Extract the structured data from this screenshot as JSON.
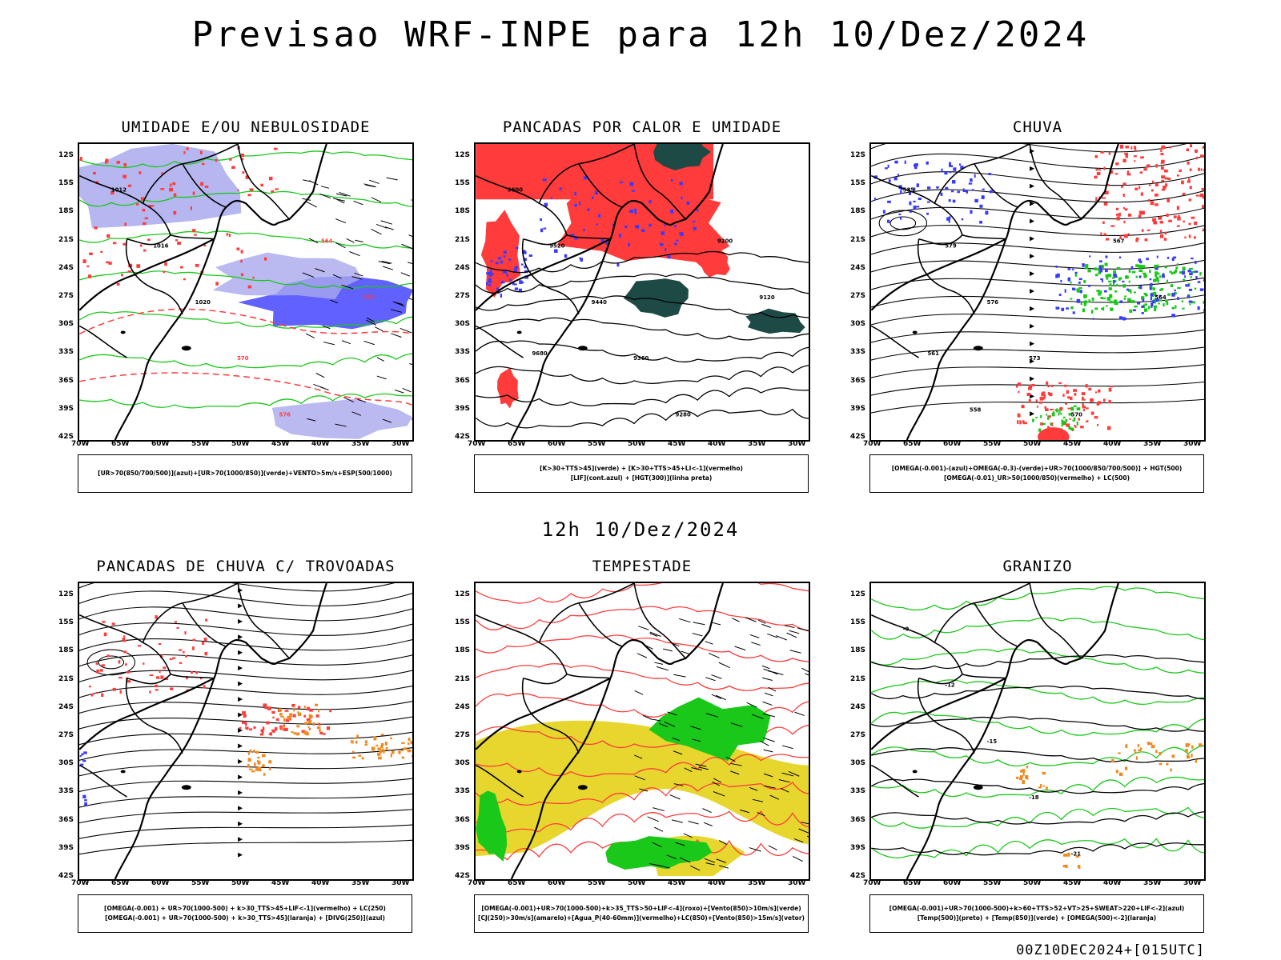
{
  "title": "Previsao WRF-INPE  para 12h 10/Dez/2024",
  "subtitle": "12h 10/Dez/2024",
  "footer": "00Z10DEC2024+[015UTC]",
  "lat_labels": [
    "12S",
    "15S",
    "18S",
    "21S",
    "24S",
    "27S",
    "30S",
    "33S",
    "36S",
    "39S",
    "42S"
  ],
  "lon_labels": [
    "70W",
    "65W",
    "60W",
    "55W",
    "50W",
    "45W",
    "40W",
    "35W",
    "30W"
  ],
  "colors": {
    "red": "#ff3b3b",
    "blue": "#3a3aff",
    "lavender": "#a9a9ee",
    "green": "#19c819",
    "darkteal": "#1e4a46",
    "yellow": "#e6d62e",
    "orange": "#f08a1e"
  },
  "panels": [
    {
      "title": "UMIDADE E/OU NEBULOSIDADE",
      "legend": [
        "[UR>70(850/700/500)](azul)+[UR>70(1000/850)](verde)+VENTO>5m/s+ESP(500/1000)"
      ],
      "contour_labels": [
        "1012",
        "1016",
        "1020",
        "570",
        "576",
        "564",
        "558"
      ]
    },
    {
      "title": "PANCADAS POR CALOR E UMIDADE",
      "legend": [
        "[K>30+TTS>45](verde) + [K>30+TTS>45+LI<-1](vermelho)",
        "[LIF](cont.azul) + [HGT(300)](linha preta)"
      ],
      "contour_labels": [
        "9600",
        "9520",
        "9440",
        "9360",
        "9280",
        "9200",
        "9120",
        "9680"
      ]
    },
    {
      "title": "CHUVA",
      "legend": [
        "[OMEGA(-0.001)-(azul)+OMEGA(-0.3)-(verde)+UR>70(1000/850/700/500)] + HGT(500)",
        "[OMEGA(-0.01)_UR>50(1000/850)(vermelho) + LC(500)"
      ],
      "contour_labels": [
        "585",
        "579",
        "576",
        "573",
        "570",
        "567",
        "564",
        "561",
        "558"
      ]
    },
    {
      "title": "PANCADAS DE CHUVA C/ TROVOADAS",
      "legend": [
        "[OMEGA(-0.001) + UR>70(1000-500) + k>30_TTS>45+LIF<-1](vermelho) + LC(250)",
        "[OMEGA(-0.001) + UR>70(1000-500) + k>30_TTS>45](laranja) + [DIVG(250)](azul)"
      ],
      "contour_labels": []
    },
    {
      "title": "TEMPESTADE",
      "legend": [
        "[OMEGA(-0.001)+UR>70(1000-500)+k>35_TTS>50+LIF<-4](roxo)+[Vento(850)>10m/s](verde)",
        "[CJ(250)>30m/s](amarelo)+[Agua_P(40-60mm)](vermelho)+LC(850)+[Vento(850)>15m/s](vetor)"
      ],
      "contour_labels": []
    },
    {
      "title": "GRANIZO",
      "legend": [
        "[OMEGA(-0.001)+UR>70(1000-500)+k>60+TTS>52+VT>25+SWEAT>220+LIF<-2](azul)",
        "[Temp(500)](preto) + [Temp(850)](verde) + [OMEGA(500)<-2](laranja)"
      ],
      "contour_labels": [
        "-9",
        "-12",
        "-15",
        "-18",
        "-21"
      ]
    }
  ]
}
